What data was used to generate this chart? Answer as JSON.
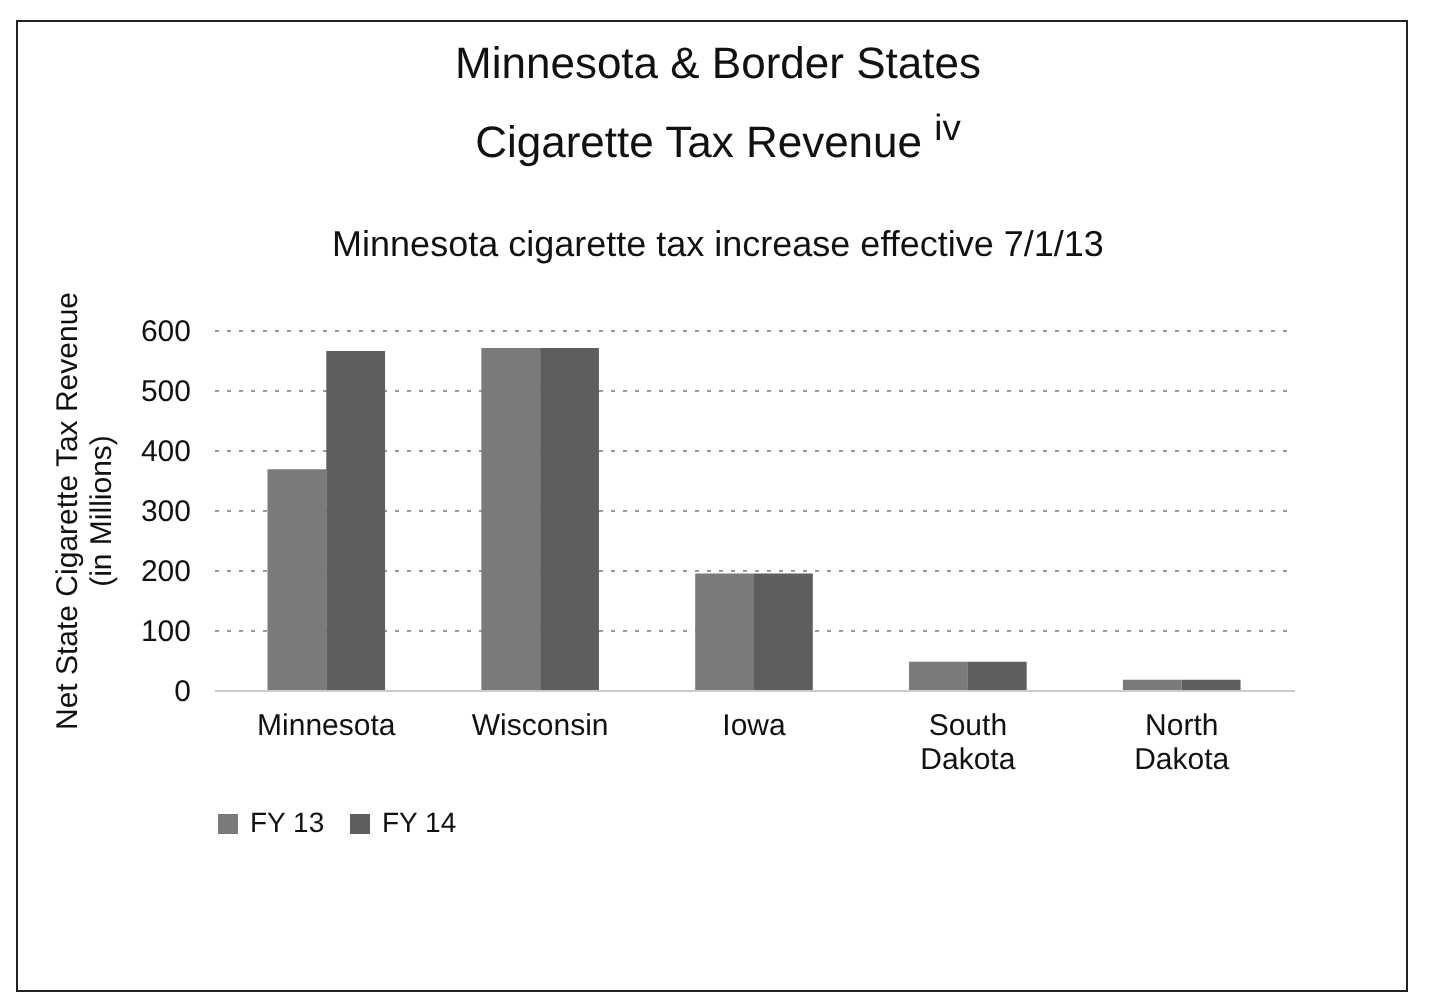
{
  "chart_data": {
    "type": "bar",
    "title": "Minnesota & Border States\nCigarette Tax Revenue $^{iv}$",
    "subtitle": "Minnesota cigarette tax increase effective 7/1/13",
    "ylabel": "Net State Cigarette Tax Revenue\n(in Millions)",
    "categories": [
      "Minnesota",
      "Wisconsin",
      "Iowa",
      "South Dakota",
      "North Dakota"
    ],
    "series": [
      {
        "name": "FY 13",
        "color": "#7a7a7a",
        "values": [
          368,
          570,
          194,
          47,
          17
        ]
      },
      {
        "name": "FY 14",
        "color": "#5e5e5e",
        "values": [
          565,
          570,
          194,
          47,
          17
        ]
      }
    ],
    "ylim": [
      0,
      600
    ],
    "yticks": [
      0,
      100,
      200,
      300,
      400,
      500,
      600
    ],
    "grid": "y",
    "legend": "bottom"
  }
}
